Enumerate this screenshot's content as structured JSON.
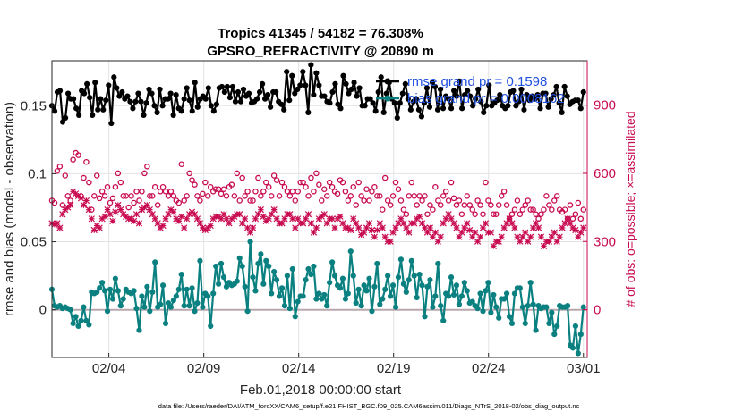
{
  "chart_data": {
    "type": "line",
    "title_line1": "Tropics 41345 / 54182 = 76.308%",
    "title_line2": "GPSRO_REFRACTIVITY @ 20890 m",
    "xlabel": "Feb.01,2018 00:00:00 start",
    "ylabel_left": "rmse and bias (model - observation)",
    "ylabel_right": "# of obs: o=possible; ×=assimilated",
    "x_unit": "day of February 2018",
    "xlim": [
      1,
      29.2
    ],
    "ylim_left": [
      -0.035,
      0.183
    ],
    "ylim_right": [
      -210,
      1095
    ],
    "x_ticks": [
      {
        "value": 4,
        "label": "02/04"
      },
      {
        "value": 9,
        "label": "02/09"
      },
      {
        "value": 14,
        "label": "02/14"
      },
      {
        "value": 19,
        "label": "02/19"
      },
      {
        "value": 24,
        "label": "02/24"
      },
      {
        "value": 29,
        "label": "03/01"
      }
    ],
    "y_ticks_left": [
      {
        "value": 0,
        "label": "0"
      },
      {
        "value": 0.05,
        "label": "0.05"
      },
      {
        "value": 0.1,
        "label": "0.1"
      },
      {
        "value": 0.15,
        "label": "0.15"
      }
    ],
    "y_ticks_right": [
      {
        "value": 0,
        "label": "0"
      },
      {
        "value": 300,
        "label": "300"
      },
      {
        "value": 600,
        "label": "600"
      },
      {
        "value": 900,
        "label": "900"
      }
    ],
    "grid": true,
    "legend": {
      "position": "top-right",
      "entries": [
        "rmse grand pr = 0.1598",
        "bias grand pr = 0.0008162"
      ]
    },
    "series": [
      {
        "name": "rmse",
        "color": "#000000",
        "marker": "circle",
        "values": [
          0.15,
          0.146,
          0.16,
          0.161,
          0.138,
          0.141,
          0.159,
          0.155,
          0.155,
          0.148,
          0.143,
          0.161,
          0.159,
          0.166,
          0.156,
          0.143,
          0.167,
          0.147,
          0.155,
          0.147,
          0.154,
          0.165,
          0.137,
          0.171,
          0.163,
          0.157,
          0.16,
          0.155,
          0.157,
          0.153,
          0.148,
          0.153,
          0.159,
          0.153,
          0.143,
          0.152,
          0.162,
          0.159,
          0.15,
          0.145,
          0.162,
          0.15,
          0.155,
          0.155,
          0.159,
          0.143,
          0.158,
          0.148,
          0.146,
          0.155,
          0.163,
          0.154,
          0.146,
          0.167,
          0.149,
          0.155,
          0.157,
          0.155,
          0.163,
          0.15,
          0.146,
          0.151,
          0.163,
          0.164,
          0.16,
          0.164,
          0.156,
          0.164,
          0.153,
          0.16,
          0.153,
          0.162,
          0.157,
          0.159,
          0.152,
          0.153,
          0.155,
          0.16,
          0.166,
          0.155,
          0.158,
          0.149,
          0.16,
          0.16,
          0.153,
          0.151,
          0.147,
          0.175,
          0.154,
          0.172,
          0.159,
          0.162,
          0.165,
          0.175,
          0.165,
          0.145,
          0.18,
          0.158,
          0.174,
          0.165,
          0.157,
          0.157,
          0.153,
          0.152,
          0.16,
          0.166,
          0.151,
          0.148,
          0.172,
          0.166,
          0.159,
          0.162,
          0.167,
          0.157,
          0.163,
          0.15,
          0.15,
          0.155,
          0.155,
          0.152,
          0.146,
          0.16,
          0.171,
          0.145,
          0.159,
          0.167,
          0.155,
          0.152,
          0.141,
          0.152,
          0.159,
          0.166,
          0.155,
          0.147,
          0.153,
          0.155,
          0.147,
          0.142,
          0.152,
          0.163,
          0.149,
          0.167,
          0.164,
          0.147,
          0.162,
          0.148,
          0.157,
          0.155,
          0.148,
          0.161,
          0.157,
          0.168,
          0.148,
          0.158,
          0.161,
          0.157,
          0.15,
          0.155,
          0.162,
          0.153,
          0.145,
          0.15,
          0.165,
          0.15,
          0.152,
          0.154,
          0.158,
          0.15,
          0.148,
          0.15,
          0.16,
          0.161,
          0.15,
          0.153,
          0.162,
          0.147,
          0.158,
          0.154,
          0.157,
          0.155,
          0.158,
          0.148,
          0.159,
          0.159,
          0.149,
          0.155,
          0.158,
          0.164,
          0.152,
          0.145,
          0.164,
          0.157,
          0.151,
          0.153,
          0.154,
          0.154,
          0.148,
          0.16
        ]
      },
      {
        "name": "bias",
        "color": "#0a8080",
        "marker": "circle",
        "values": [
          0.015,
          0.003,
          0.002,
          0.003,
          0.001,
          0.002,
          0.001,
          0.0,
          -0.01,
          -0.005,
          -0.012,
          -0.008,
          0.002,
          -0.008,
          -0.011,
          0.013,
          0.012,
          0.013,
          0.016,
          0.02,
          0.014,
          -0.001,
          0.015,
          0.008,
          0.023,
          0.014,
          0.003,
          0.008,
          0.015,
          0.013,
          0.012,
          0.014,
          0.001,
          -0.015,
          0.01,
          0.002,
          0.017,
          -0.001,
          0.013,
          0.035,
          0.002,
          0.004,
          0.018,
          -0.01,
          0.005,
          0.002,
          0.007,
          0.01,
          0.015,
          0.026,
          0.003,
          0.015,
          0.003,
          0.016,
          -0.001,
          0.005,
          0.036,
          0.002,
          0.012,
          0.01,
          -0.012,
          0.012,
          0.032,
          0.019,
          0.034,
          0.024,
          0.017,
          0.02,
          0.018,
          0.019,
          0.021,
          0.038,
          0.032,
          0.017,
          -0.001,
          0.05,
          0.024,
          0.014,
          0.034,
          0.041,
          0.019,
          0.036,
          0.032,
          0.012,
          0.028,
          0.022,
          0.01,
          0.016,
          0.003,
          0.025,
          0.001,
          0.03,
          -0.005,
          0.006,
          0.01,
          0.01,
          0.022,
          0.03,
          0.026,
          0.032,
          0.008,
          0.012,
          0.008,
          0.011,
          0.003,
          0.02,
          0.035,
          0.025,
          0.018,
          0.016,
          0.023,
          0.008,
          0.012,
          0.043,
          0.025,
          0.005,
          0.015,
          0.003,
          0.018,
          0.014,
          0.023,
          -0.001,
          0.017,
          0.034,
          0.004,
          0.008,
          0.015,
          0.025,
          0.01,
          0.018,
          0.002,
          0.024,
          0.037,
          0.019,
          0.013,
          0.022,
          0.036,
          0.025,
          0.009,
          0.026,
          0.018,
          -0.005,
          0.017,
          0.022,
          0.002,
          0.01,
          0.034,
          0.003,
          -0.008,
          0.012,
          0.01,
          0.024,
          0.011,
          0.018,
          0.004,
          0.01,
          0.02,
          0.014,
          0.005,
          0.006,
          0.003,
          0.001,
          0.012,
          -0.001,
          0.014,
          0.02,
          -0.002,
          0.011,
          0.002,
          -0.006,
          0.008,
          0.008,
          0.012,
          -0.005,
          -0.01,
          0.012,
          0.016,
          0.016,
          0.002,
          -0.01,
          0.003,
          0.02,
          0.004,
          -0.015,
          0.003,
          0.001,
          0.002,
          0.002,
          -0.01,
          -0.002,
          -0.018,
          -0.012,
          0.003,
          0.002,
          0.002,
          0.003,
          -0.026,
          -0.028,
          -0.012,
          -0.032,
          -0.018,
          0.002
        ]
      },
      {
        "name": "# obs possible",
        "axis": "right",
        "color": "#c80a50",
        "marker": "o",
        "values": [
          480,
          470,
          610,
          630,
          460,
          590,
          500,
          480,
          660,
          690,
          680,
          500,
          580,
          650,
          560,
          440,
          500,
          590,
          490,
          520,
          500,
          540,
          470,
          490,
          540,
          600,
          560,
          500,
          500,
          450,
          500,
          470,
          520,
          480,
          520,
          600,
          630,
          500,
          500,
          540,
          460,
          520,
          540,
          520,
          500,
          520,
          500,
          480,
          470,
          640,
          480,
          500,
          600,
          570,
          550,
          500,
          480,
          510,
          560,
          500,
          540,
          520,
          530,
          530,
          510,
          530,
          500,
          540,
          550,
          500,
          600,
          480,
          580,
          500,
          520,
          480,
          480,
          520,
          580,
          500,
          520,
          560,
          540,
          500,
          590,
          570,
          500,
          560,
          540,
          520,
          500,
          520,
          480,
          520,
          560,
          560,
          540,
          500,
          580,
          520,
          600,
          550,
          480,
          530,
          500,
          560,
          540,
          520,
          510,
          570,
          560,
          520,
          480,
          500,
          540,
          460,
          560,
          500,
          480,
          530,
          480,
          520,
          540,
          500,
          500,
          440,
          580,
          480,
          460,
          500,
          560,
          530,
          480,
          440,
          420,
          500,
          560,
          500,
          460,
          500,
          480,
          500,
          420,
          460,
          440,
          540,
          480,
          460,
          500,
          520,
          480,
          560,
          490,
          460,
          480,
          420,
          460,
          500,
          460,
          440,
          420,
          480,
          460,
          420,
          560,
          480,
          460,
          420,
          420,
          460,
          500,
          520,
          460,
          400,
          420,
          440,
          480,
          420,
          440,
          460,
          480,
          440,
          440,
          420,
          400,
          420,
          440,
          500,
          460,
          440,
          480,
          500,
          440,
          430,
          440,
          400,
          460,
          400,
          420,
          470,
          400,
          440
        ]
      },
      {
        "name": "# obs assimilated",
        "axis": "right",
        "color": "#c80a50",
        "marker": "x",
        "values": [
          380,
          375,
          380,
          360,
          420,
          440,
          450,
          460,
          520,
          510,
          500,
          490,
          460,
          480,
          440,
          400,
          350,
          370,
          360,
          400,
          410,
          440,
          420,
          390,
          430,
          460,
          440,
          420,
          410,
          400,
          400,
          390,
          420,
          380,
          440,
          450,
          460,
          440,
          420,
          400,
          380,
          360,
          370,
          400,
          420,
          440,
          430,
          400,
          390,
          410,
          360,
          400,
          420,
          430,
          420,
          400,
          380,
          360,
          350,
          360,
          370,
          400,
          410,
          410,
          400,
          420,
          400,
          380,
          400,
          410,
          420,
          420,
          380,
          400,
          360,
          340,
          360,
          400,
          420,
          440,
          410,
          390,
          400,
          420,
          440,
          400,
          380,
          380,
          400,
          420,
          420,
          400,
          360,
          400,
          380,
          380,
          400,
          420,
          380,
          340,
          360,
          400,
          410,
          420,
          380,
          400,
          400,
          360,
          400,
          410,
          380,
          360,
          360,
          350,
          400,
          380,
          360,
          330,
          340,
          360,
          380,
          350,
          320,
          350,
          380,
          360,
          320,
          300,
          300,
          340,
          360,
          380,
          400,
          380,
          360,
          340,
          380,
          380,
          400,
          410,
          380,
          360,
          340,
          360,
          320,
          340,
          300,
          320,
          380,
          400,
          420,
          400,
          380,
          360,
          320,
          340,
          360,
          380,
          350,
          320,
          340,
          300,
          320,
          360,
          380,
          340,
          340,
          280,
          300,
          300,
          320,
          360,
          380,
          400,
          380,
          360,
          320,
          300,
          320,
          340,
          300,
          320,
          360,
          380,
          360,
          320,
          280,
          300,
          300,
          320,
          340,
          300,
          320,
          360,
          380,
          400,
          380,
          360,
          350,
          320,
          340,
          360
        ]
      }
    ],
    "zero_line_value": 0
  },
  "footer": {
    "datafile": "data file: /Users/raeder/DAI/ATM_forcXX/CAM6_setup/f.e21.FHIST_BGC.f09_025.CAM6assim.011/Diags_NTrS_2018-02/obs_diag_output.nc"
  }
}
